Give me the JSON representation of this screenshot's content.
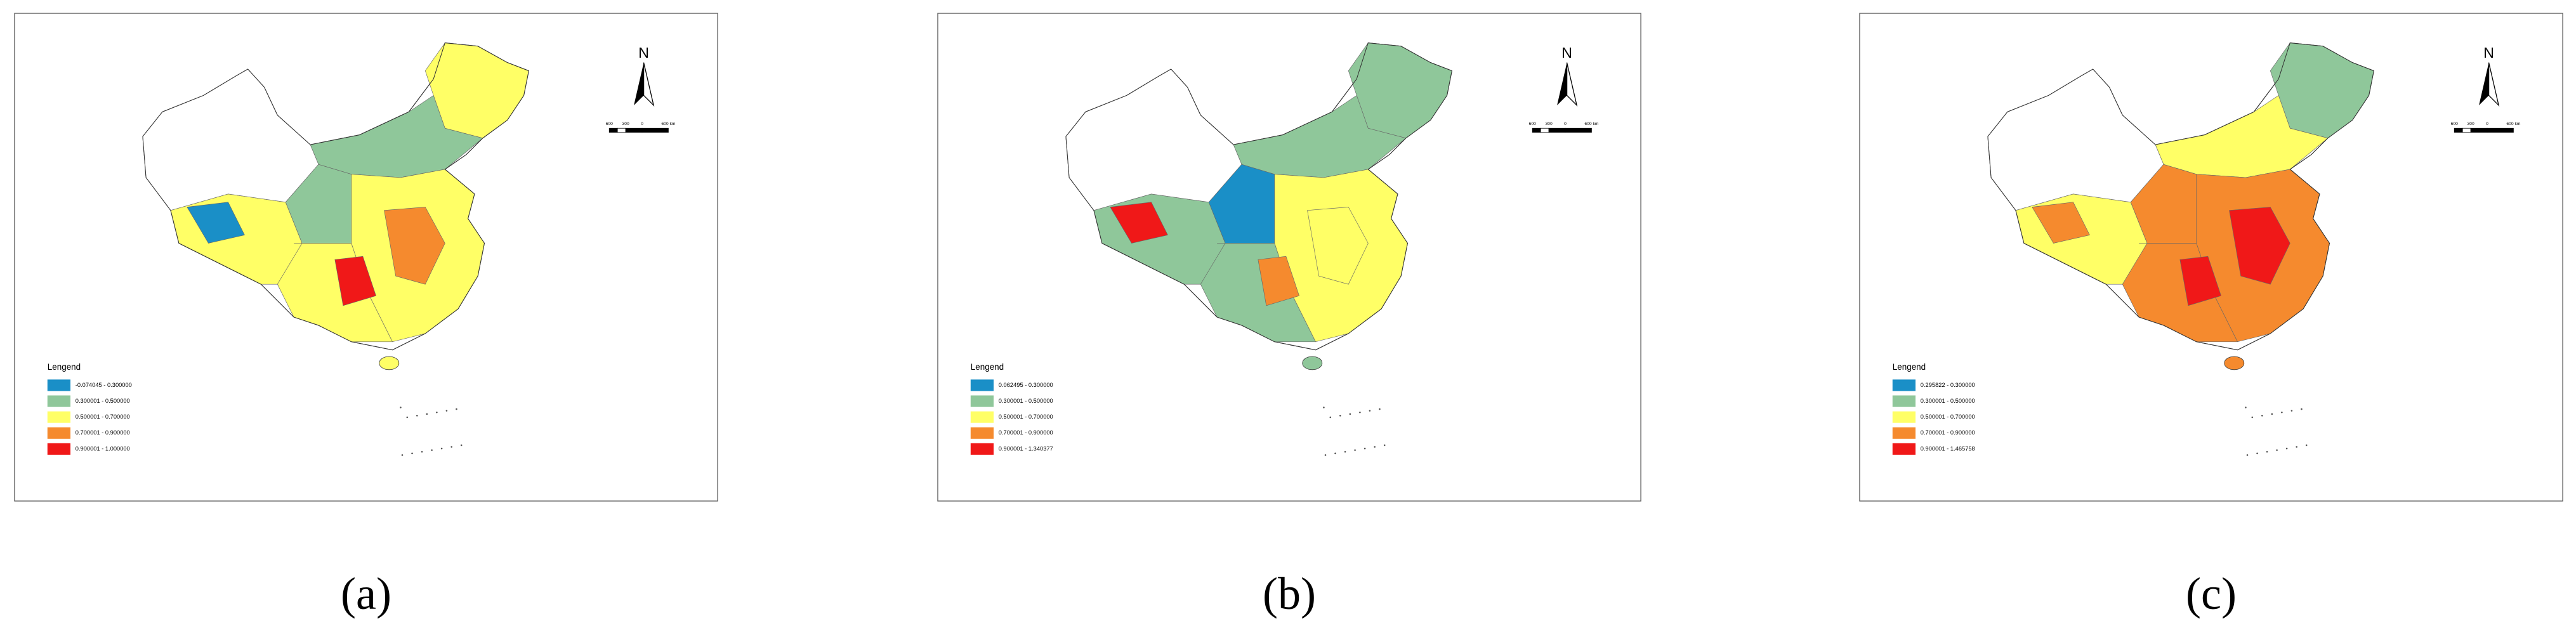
{
  "panels": [
    {
      "label": "(a)",
      "north": "N",
      "scale_labels": [
        "600",
        "300",
        "0",
        "600 km"
      ],
      "legend": {
        "title": "Lengend",
        "items": [
          {
            "label": "-0.074045 - 0.300000",
            "color": "#1a8fc7"
          },
          {
            "label": "0.300001 - 0.500000",
            "color": "#8fc79a"
          },
          {
            "label": "0.500001 - 0.700000",
            "color": "#ffff66"
          },
          {
            "label": "0.700001 - 0.900000",
            "color": "#f58a2e"
          },
          {
            "label": "0.900001 - 1.000000",
            "color": "#f01818"
          }
        ]
      }
    },
    {
      "label": "(b)",
      "north": "N",
      "scale_labels": [
        "600",
        "300",
        "0",
        "600 km"
      ],
      "legend": {
        "title": "Lengend",
        "items": [
          {
            "label": "0.062495 - 0.300000",
            "color": "#1a8fc7"
          },
          {
            "label": "0.300001 - 0.500000",
            "color": "#8fc79a"
          },
          {
            "label": "0.500001 - 0.700000",
            "color": "#ffff66"
          },
          {
            "label": "0.700001 - 0.900000",
            "color": "#f58a2e"
          },
          {
            "label": "0.900001 - 1.340377",
            "color": "#f01818"
          }
        ]
      }
    },
    {
      "label": "(c)",
      "north": "N",
      "scale_labels": [
        "600",
        "300",
        "0",
        "600 km"
      ],
      "legend": {
        "title": "Lengend",
        "items": [
          {
            "label": "0.295822 - 0.300000",
            "color": "#1a8fc7"
          },
          {
            "label": "0.300001 - 0.500000",
            "color": "#8fc79a"
          },
          {
            "label": "0.500001 - 0.700000",
            "color": "#ffff66"
          },
          {
            "label": "0.700001 - 0.900000",
            "color": "#f58a2e"
          },
          {
            "label": "0.900001 - 1.465758",
            "color": "#f01818"
          }
        ]
      }
    }
  ]
}
